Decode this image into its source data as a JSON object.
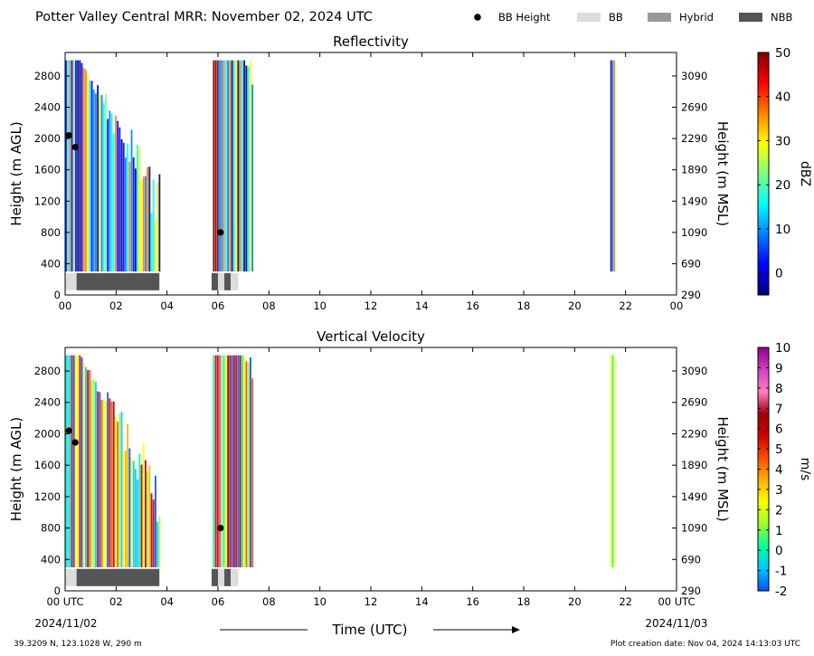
{
  "header": {
    "title": "Potter Valley Central MRR:  November 02, 2024 UTC",
    "legend": [
      {
        "label": "BB Height",
        "kind": "dot",
        "color": "#000000"
      },
      {
        "label": "BB",
        "kind": "swatch",
        "color": "#dddddd"
      },
      {
        "label": "Hybrid",
        "kind": "swatch",
        "color": "#999999"
      },
      {
        "label": "NBB",
        "kind": "swatch",
        "color": "#555555"
      }
    ]
  },
  "footer": {
    "xlabel": "Time (UTC)",
    "date_start": "2024/11/02",
    "date_end": "2024/11/03",
    "location": "39.3209 N, 123.1028 W, 290 m",
    "created": "Plot creation date: Nov 04, 2024 14:13:03 UTC"
  },
  "chart_data": [
    {
      "type": "heatmap",
      "title": "Reflectivity",
      "ylabel": "Height (m AGL)",
      "ylabel_right": "Height (m MSL)",
      "xlim": [
        0,
        24
      ],
      "ylim": [
        0,
        3100
      ],
      "x_ticks": [
        "00",
        "02",
        "04",
        "06",
        "08",
        "10",
        "12",
        "14",
        "16",
        "18",
        "20",
        "22",
        "00"
      ],
      "y_ticks": [
        0,
        400,
        800,
        1200,
        1600,
        2000,
        2400,
        2800
      ],
      "y_ticks_right": [
        290,
        690,
        1090,
        1490,
        1890,
        2290,
        2690,
        3090
      ],
      "colorbar": {
        "label": "dBZ",
        "min": -5,
        "max": 50,
        "ticks": [
          0,
          10,
          20,
          30,
          40,
          50
        ],
        "colors": [
          "#00007f",
          "#0000ff",
          "#0080ff",
          "#00ffff",
          "#80ff80",
          "#ffff00",
          "#ff8000",
          "#ff0000",
          "#7f0000"
        ]
      },
      "precip_periods": [
        {
          "start": 0.0,
          "end": 3.75,
          "top": 3000
        },
        {
          "start": 5.8,
          "end": 7.4,
          "top": 3000
        },
        {
          "start": 21.4,
          "end": 21.6,
          "top": 3000
        }
      ],
      "bright_band_heights": [
        {
          "time": 0.15,
          "height": 2040
        },
        {
          "time": 0.4,
          "height": 1890
        },
        {
          "time": 6.1,
          "height": 800
        }
      ],
      "bb_type_bar": [
        {
          "start": 0.0,
          "end": 0.45,
          "type": "BB"
        },
        {
          "start": 0.45,
          "end": 3.7,
          "type": "NBB"
        },
        {
          "start": 5.75,
          "end": 6.0,
          "type": "NBB"
        },
        {
          "start": 6.0,
          "end": 6.25,
          "type": "BB"
        },
        {
          "start": 6.25,
          "end": 6.5,
          "type": "NBB"
        },
        {
          "start": 6.5,
          "end": 6.8,
          "type": "BB"
        }
      ]
    },
    {
      "type": "heatmap",
      "title": "Vertical Velocity",
      "ylabel": "Height (m AGL)",
      "ylabel_right": "Height (m MSL)",
      "xlim": [
        0,
        24
      ],
      "ylim": [
        0,
        3100
      ],
      "x_ticks": [
        "00 UTC",
        "02",
        "04",
        "06",
        "08",
        "10",
        "12",
        "14",
        "16",
        "18",
        "20",
        "22",
        "00 UTC"
      ],
      "y_ticks": [
        0,
        400,
        800,
        1200,
        1600,
        2000,
        2400,
        2800
      ],
      "y_ticks_right": [
        290,
        690,
        1090,
        1490,
        1890,
        2290,
        2690,
        3090
      ],
      "colorbar": {
        "label": "m/s",
        "min": -2,
        "max": 10,
        "ticks": [
          -2,
          -1,
          0,
          1,
          2,
          3,
          4,
          5,
          6,
          7,
          8,
          9,
          10
        ],
        "colors": [
          "#0050ff",
          "#00c8ff",
          "#00ff9a",
          "#9aff30",
          "#ffff00",
          "#ffb000",
          "#ff5000",
          "#d00000",
          "#a00010",
          "#ff80c0",
          "#d040c0",
          "#900090"
        ]
      },
      "precip_periods": [
        {
          "start": 0.0,
          "end": 3.75,
          "top": 3000
        },
        {
          "start": 5.8,
          "end": 7.4,
          "top": 3000
        },
        {
          "start": 21.4,
          "end": 21.6,
          "top": 3000
        }
      ],
      "bright_band_heights": [
        {
          "time": 0.15,
          "height": 2040
        },
        {
          "time": 0.4,
          "height": 1890
        },
        {
          "time": 6.1,
          "height": 800
        }
      ],
      "bb_type_bar": [
        {
          "start": 0.0,
          "end": 0.45,
          "type": "BB"
        },
        {
          "start": 0.45,
          "end": 3.7,
          "type": "NBB"
        },
        {
          "start": 5.75,
          "end": 6.0,
          "type": "NBB"
        },
        {
          "start": 6.0,
          "end": 6.25,
          "type": "BB"
        },
        {
          "start": 6.25,
          "end": 6.5,
          "type": "NBB"
        },
        {
          "start": 6.5,
          "end": 6.8,
          "type": "BB"
        }
      ]
    }
  ]
}
